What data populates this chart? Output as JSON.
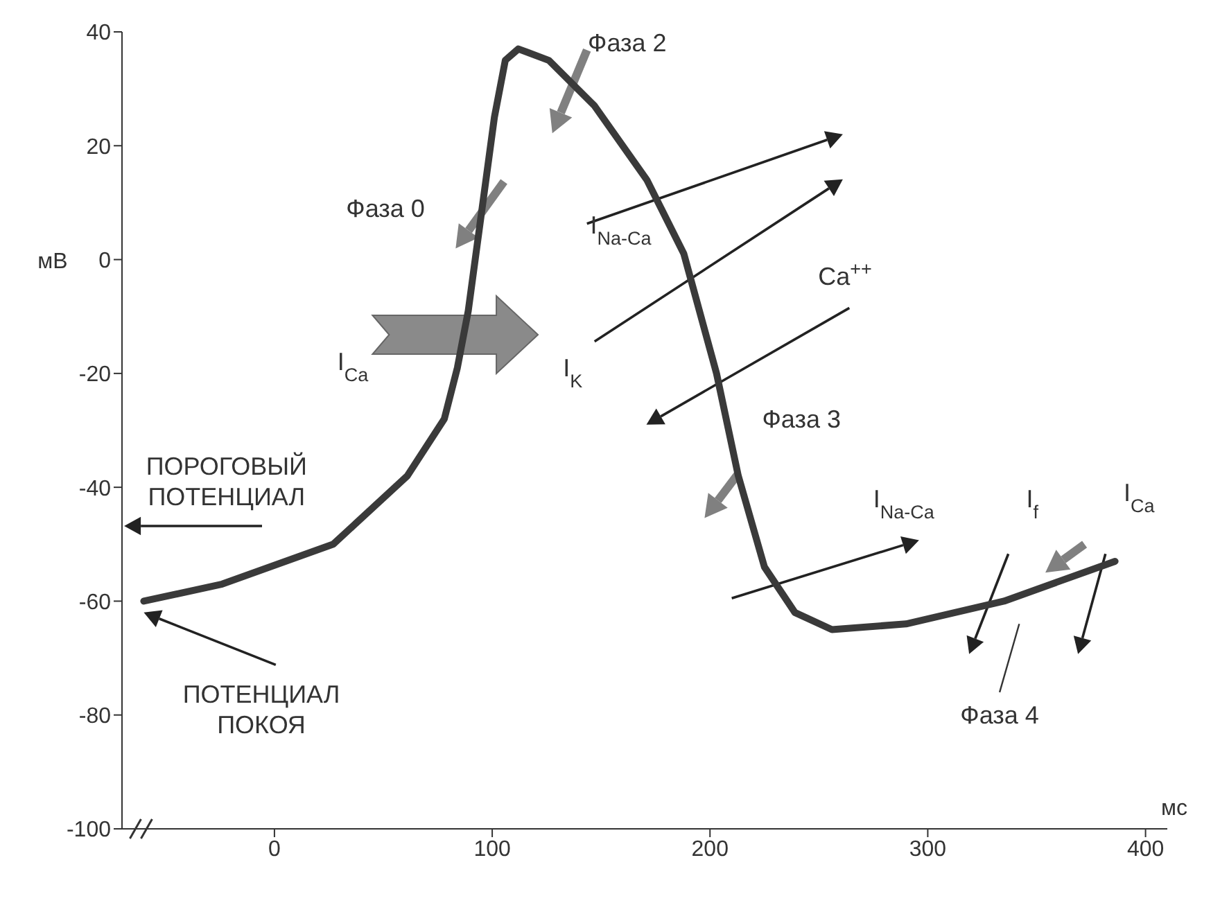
{
  "chart_data": {
    "type": "line",
    "xlabel": "мс",
    "ylabel": "мВ",
    "x": [
      -60,
      -24,
      27,
      61,
      78,
      84,
      89,
      95,
      101,
      106,
      112,
      126,
      147,
      171,
      188,
      203,
      213,
      225,
      239,
      256,
      290,
      335,
      386
    ],
    "series": [
      {
        "color": "#3a3a3a",
        "values": [
          -60,
          -57,
          -50,
          -38,
          -28,
          -19,
          -9,
          8,
          25,
          35,
          37,
          35,
          27,
          14,
          1,
          -20,
          -38,
          -54,
          -62,
          -65,
          -64,
          -60,
          -53
        ]
      }
    ],
    "xlim": [
      -70,
      410
    ],
    "ylim": [
      -100,
      40
    ],
    "xticks": [
      0,
      100,
      200,
      300,
      400
    ],
    "yticks": [
      -100,
      -80,
      -60,
      -40,
      -20,
      0,
      20,
      40
    ],
    "marker": "none",
    "line_style": "solid",
    "annotations": [
      "Фаза 2",
      "Фаза 0",
      "I$_{Na-Ca}$",
      "Ca$^{++}$",
      "I$_{K}$",
      "I$_{Ca}$",
      "Фаза 3",
      "ПОРОГОВЫЙ\nПОТЕНЦИАЛ",
      "ПОТЕНЦИАЛ\nПОКОЯ",
      "I$_{Na-Ca}$",
      "I$_{f}$",
      "I$_{Ca}$",
      "Фаза 4"
    ]
  }
}
